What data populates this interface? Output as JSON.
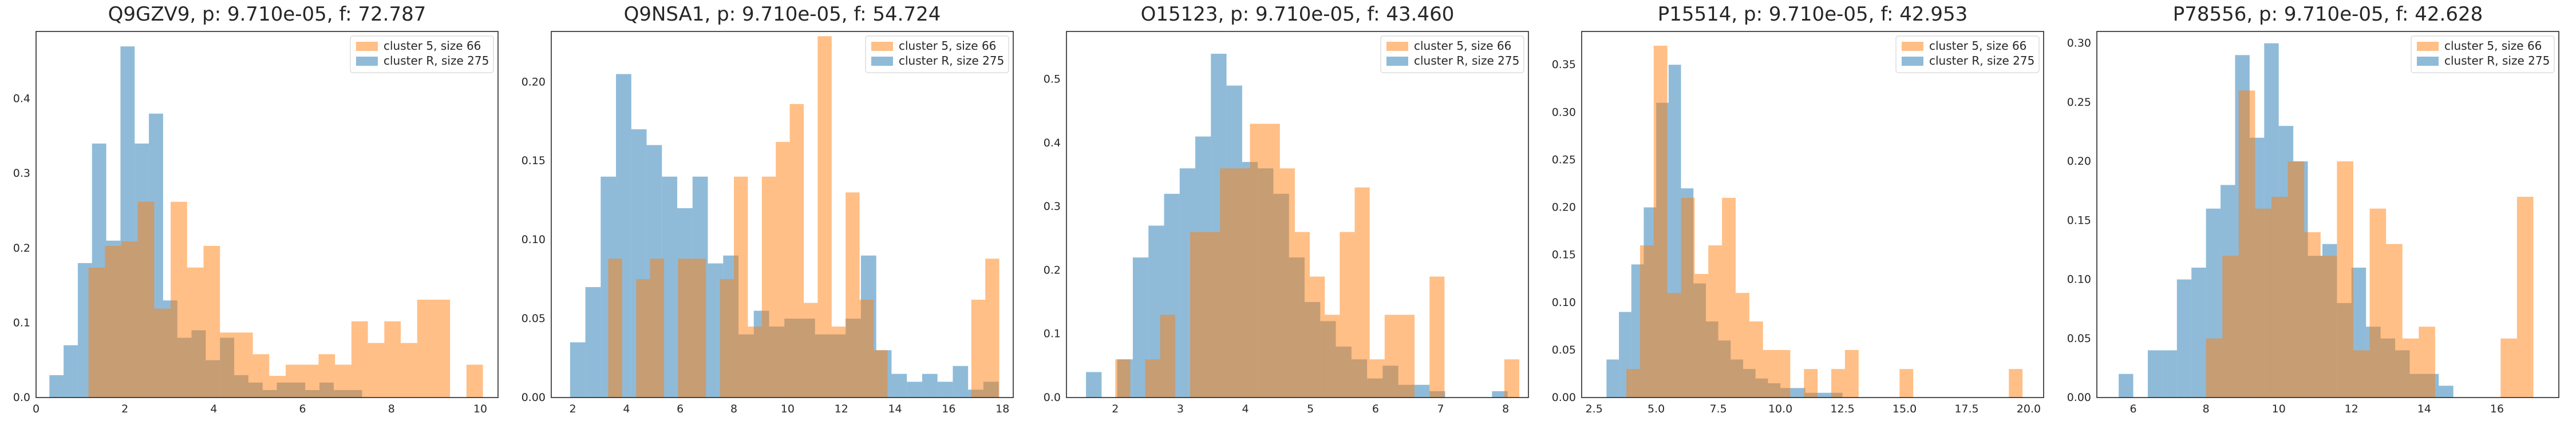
{
  "chart_data": [
    {
      "type": "histogram",
      "title": "Q9GZV9, p: 9.710e-05, f: 72.787",
      "xlim": [
        0,
        10.4
      ],
      "ylim": [
        0,
        0.49
      ],
      "xticks": [
        0,
        2,
        4,
        6,
        8,
        10
      ],
      "yticks": [
        0.0,
        0.1,
        0.2,
        0.3,
        0.4
      ],
      "yticklabels": [
        "0.0",
        "0.1",
        "0.2",
        "0.3",
        "0.4"
      ],
      "legend": {
        "position": "top-right",
        "entries": [
          "cluster 5, size 66",
          "cluster R, size 275"
        ]
      },
      "series": [
        {
          "name": "cluster R, size 275",
          "color": "#1f77b4",
          "edges": [
            0.3,
            0.62,
            0.94,
            1.26,
            1.58,
            1.9,
            2.22,
            2.54,
            2.86,
            3.18,
            3.5,
            3.82,
            4.14,
            4.46,
            4.78,
            5.1,
            5.42,
            5.74,
            6.06,
            6.38,
            6.7,
            7.02,
            7.34
          ],
          "values": [
            0.03,
            0.07,
            0.18,
            0.34,
            0.21,
            0.47,
            0.34,
            0.38,
            0.13,
            0.08,
            0.09,
            0.05,
            0.08,
            0.03,
            0.02,
            0.01,
            0.02,
            0.02,
            0.01,
            0.02,
            0.01,
            0.01
          ]
        },
        {
          "name": "cluster 5, size 66",
          "color": "#ff7f0e",
          "edges": [
            1.18,
            1.55,
            1.92,
            2.29,
            2.66,
            3.03,
            3.4,
            3.77,
            4.14,
            4.51,
            4.88,
            5.25,
            5.62,
            5.99,
            6.36,
            6.73,
            7.1,
            7.47,
            7.84,
            8.21,
            8.58,
            8.95,
            9.32,
            9.69,
            10.06
          ],
          "values": [
            0.174,
            0.203,
            0.209,
            0.262,
            0.119,
            0.262,
            0.174,
            0.203,
            0.087,
            0.087,
            0.058,
            0.029,
            0.044,
            0.044,
            0.058,
            0.044,
            0.102,
            0.073,
            0.102,
            0.073,
            0.131,
            0.131,
            0.0,
            0.044
          ]
        }
      ]
    },
    {
      "type": "histogram",
      "title": "Q9NSA1, p: 9.710e-05, f: 54.724",
      "xlim": [
        1.2,
        18.4
      ],
      "ylim": [
        0,
        0.232
      ],
      "xticks": [
        2,
        4,
        6,
        8,
        10,
        12,
        14,
        16,
        18
      ],
      "yticks": [
        0.0,
        0.05,
        0.1,
        0.15,
        0.2
      ],
      "yticklabels": [
        "0.00",
        "0.05",
        "0.10",
        "0.15",
        "0.20"
      ],
      "legend": {
        "position": "top-right",
        "entries": [
          "cluster 5, size 66",
          "cluster R, size 275"
        ]
      },
      "series": [
        {
          "name": "cluster R, size 275",
          "color": "#1f77b4",
          "edges": [
            1.9,
            2.47,
            3.04,
            3.61,
            4.18,
            4.75,
            5.32,
            5.89,
            6.46,
            7.03,
            7.6,
            8.17,
            8.74,
            9.31,
            9.88,
            10.45,
            11.02,
            11.59,
            12.16,
            12.73,
            13.3,
            13.87,
            14.44,
            15.01,
            15.58,
            16.15,
            16.72,
            17.29,
            17.86
          ],
          "values": [
            0.035,
            0.07,
            0.14,
            0.205,
            0.17,
            0.16,
            0.14,
            0.12,
            0.14,
            0.085,
            0.09,
            0.04,
            0.055,
            0.045,
            0.05,
            0.05,
            0.04,
            0.04,
            0.05,
            0.09,
            0.03,
            0.015,
            0.01,
            0.015,
            0.01,
            0.02,
            0.005,
            0.01
          ]
        },
        {
          "name": "cluster 5, size 66",
          "color": "#ff7f0e",
          "edges": [
            2.8,
            3.32,
            3.84,
            4.36,
            4.88,
            5.4,
            5.92,
            6.44,
            6.96,
            7.48,
            8.0,
            8.52,
            9.04,
            9.56,
            10.08,
            10.6,
            11.12,
            11.64,
            12.16,
            12.68,
            13.2,
            13.72,
            14.24,
            14.76,
            15.28,
            15.8,
            16.32,
            16.84,
            17.36,
            17.88
          ],
          "values": [
            0.0,
            0.088,
            0.0,
            0.075,
            0.088,
            0.0,
            0.088,
            0.088,
            0.0,
            0.075,
            0.14,
            0.045,
            0.14,
            0.162,
            0.186,
            0.06,
            0.229,
            0.045,
            0.13,
            0.062,
            0.03,
            0.0,
            0.0,
            0.0,
            0.0,
            0.0,
            0.0,
            0.062,
            0.088
          ]
        }
      ]
    },
    {
      "type": "histogram",
      "title": "O15123, p: 9.710e-05, f: 43.460",
      "xlim": [
        1.25,
        8.35
      ],
      "ylim": [
        0,
        0.575
      ],
      "xticks": [
        2,
        3,
        4,
        5,
        6,
        7,
        8
      ],
      "yticks": [
        0.0,
        0.1,
        0.2,
        0.3,
        0.4,
        0.5
      ],
      "yticklabels": [
        "0.0",
        "0.1",
        "0.2",
        "0.3",
        "0.4",
        "0.5"
      ],
      "legend": {
        "position": "top-right",
        "entries": [
          "cluster 5, size 66",
          "cluster R, size 275"
        ]
      },
      "series": [
        {
          "name": "cluster R, size 275",
          "color": "#1f77b4",
          "edges": [
            1.55,
            1.79,
            2.03,
            2.27,
            2.51,
            2.75,
            2.99,
            3.23,
            3.47,
            3.71,
            3.95,
            4.19,
            4.43,
            4.67,
            4.91,
            5.15,
            5.39,
            5.63,
            5.87,
            6.11,
            6.35,
            6.59,
            6.83,
            7.07,
            7.31,
            7.55,
            7.79,
            8.03
          ],
          "values": [
            0.04,
            0.0,
            0.06,
            0.22,
            0.27,
            0.32,
            0.36,
            0.41,
            0.54,
            0.49,
            0.37,
            0.36,
            0.32,
            0.22,
            0.15,
            0.12,
            0.08,
            0.06,
            0.03,
            0.05,
            0.02,
            0.02,
            0.01,
            0.0,
            0.0,
            0.0,
            0.01
          ]
        },
        {
          "name": "cluster 5, size 66",
          "color": "#ff7f0e",
          "edges": [
            2.0,
            2.23,
            2.46,
            2.69,
            2.92,
            3.15,
            3.38,
            3.61,
            3.84,
            4.07,
            4.3,
            4.53,
            4.76,
            4.99,
            5.22,
            5.45,
            5.68,
            5.91,
            6.14,
            6.37,
            6.6,
            6.83,
            7.06,
            7.29,
            7.52,
            7.75,
            7.98,
            8.21
          ],
          "values": [
            0.06,
            0.0,
            0.06,
            0.13,
            0.0,
            0.26,
            0.26,
            0.36,
            0.36,
            0.43,
            0.43,
            0.36,
            0.26,
            0.19,
            0.13,
            0.26,
            0.33,
            0.06,
            0.13,
            0.13,
            0.0,
            0.19,
            0.0,
            0.0,
            0.0,
            0.0,
            0.06
          ]
        }
      ]
    },
    {
      "type": "histogram",
      "title": "P15514, p: 9.710e-05, f: 42.953",
      "xlim": [
        2.0,
        20.6
      ],
      "ylim": [
        0,
        0.385
      ],
      "xticks": [
        2.5,
        5.0,
        7.5,
        10.0,
        12.5,
        15.0,
        17.5,
        20.0
      ],
      "yticks": [
        0.0,
        0.05,
        0.1,
        0.15,
        0.2,
        0.25,
        0.3,
        0.35
      ],
      "yticklabels": [
        "0.00",
        "0.05",
        "0.10",
        "0.15",
        "0.20",
        "0.25",
        "0.30",
        "0.35"
      ],
      "legend": {
        "position": "top-right",
        "entries": [
          "cluster 5, size 66",
          "cluster R, size 275"
        ]
      },
      "series": [
        {
          "name": "cluster R, size 275",
          "color": "#1f77b4",
          "edges": [
            3.0,
            3.5,
            4.0,
            4.5,
            5.0,
            5.5,
            6.0,
            6.5,
            7.0,
            7.5,
            8.0,
            8.5,
            9.0,
            9.5,
            10.0,
            10.5,
            11.0,
            11.5,
            12.0,
            12.5
          ],
          "values": [
            0.04,
            0.09,
            0.14,
            0.2,
            0.31,
            0.35,
            0.22,
            0.12,
            0.08,
            0.06,
            0.04,
            0.03,
            0.02,
            0.015,
            0.01,
            0.01,
            0.005,
            0.005,
            0.005
          ]
        },
        {
          "name": "cluster 5, size 66",
          "color": "#ff7f0e",
          "edges": [
            3.8,
            4.35,
            4.9,
            5.45,
            6.0,
            6.55,
            7.1,
            7.65,
            8.2,
            8.75,
            9.3,
            9.85,
            10.4,
            10.95,
            11.5,
            12.05,
            12.6,
            13.15,
            13.7,
            14.25,
            14.8,
            15.35,
            15.9,
            16.45,
            17.0,
            17.55,
            18.1,
            18.65,
            19.2,
            19.75
          ],
          "values": [
            0.03,
            0.16,
            0.37,
            0.11,
            0.21,
            0.13,
            0.16,
            0.21,
            0.11,
            0.08,
            0.05,
            0.05,
            0.0,
            0.03,
            0.0,
            0.03,
            0.05,
            0.0,
            0.0,
            0.0,
            0.03,
            0.0,
            0.0,
            0.0,
            0.0,
            0.0,
            0.0,
            0.0,
            0.03
          ]
        }
      ]
    },
    {
      "type": "histogram",
      "title": "P78556, p: 9.710e-05, f: 42.628",
      "xlim": [
        5.0,
        17.7
      ],
      "ylim": [
        0,
        0.31
      ],
      "xticks": [
        6,
        8,
        10,
        12,
        14,
        16
      ],
      "yticks": [
        0.0,
        0.05,
        0.1,
        0.15,
        0.2,
        0.25,
        0.3
      ],
      "yticklabels": [
        "0.00",
        "0.05",
        "0.10",
        "0.15",
        "0.20",
        "0.25",
        "0.30"
      ],
      "legend": {
        "position": "top-right",
        "entries": [
          "cluster 5, size 66",
          "cluster R, size 275"
        ]
      },
      "series": [
        {
          "name": "cluster R, size 275",
          "color": "#1f77b4",
          "edges": [
            5.6,
            6.0,
            6.4,
            6.8,
            7.2,
            7.6,
            8.0,
            8.4,
            8.8,
            9.2,
            9.6,
            10.0,
            10.4,
            10.8,
            11.2,
            11.6,
            12.0,
            12.4,
            12.8,
            13.2,
            13.6,
            14.0,
            14.4,
            14.8
          ],
          "values": [
            0.02,
            0.0,
            0.04,
            0.04,
            0.1,
            0.11,
            0.16,
            0.18,
            0.29,
            0.22,
            0.3,
            0.23,
            0.2,
            0.12,
            0.13,
            0.08,
            0.11,
            0.06,
            0.05,
            0.04,
            0.02,
            0.02,
            0.01
          ]
        },
        {
          "name": "cluster 5, size 66",
          "color": "#ff7f0e",
          "edges": [
            8.0,
            8.45,
            8.9,
            9.35,
            9.8,
            10.25,
            10.7,
            11.15,
            11.6,
            12.05,
            12.5,
            12.95,
            13.4,
            13.85,
            14.3,
            14.75,
            15.2,
            15.65,
            16.1,
            16.55,
            17.0
          ],
          "values": [
            0.05,
            0.12,
            0.26,
            0.16,
            0.17,
            0.2,
            0.14,
            0.12,
            0.2,
            0.04,
            0.16,
            0.13,
            0.05,
            0.06,
            0.0,
            0.0,
            0.0,
            0.0,
            0.05,
            0.17
          ]
        }
      ]
    }
  ]
}
